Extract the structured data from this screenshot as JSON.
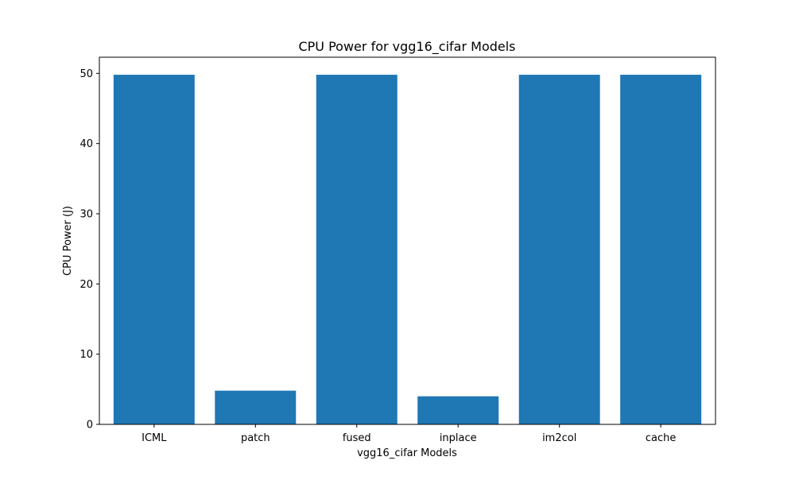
{
  "chart_data": {
    "type": "bar",
    "title": "CPU Power for vgg16_cifar Models",
    "xlabel": "vgg16_cifar Models",
    "ylabel": "CPU Power (J)",
    "categories": [
      "ICML",
      "patch",
      "fused",
      "inplace",
      "im2col",
      "cache"
    ],
    "values": [
      49.8,
      4.8,
      49.8,
      4.0,
      49.8,
      49.8
    ],
    "ylim": [
      0,
      52.3
    ],
    "yticks": [
      0,
      10,
      20,
      30,
      40,
      50
    ],
    "ytick_labels": [
      "0",
      "10",
      "20",
      "30",
      "40",
      "50"
    ],
    "grid": false,
    "bar_color": "#1f77b4"
  }
}
